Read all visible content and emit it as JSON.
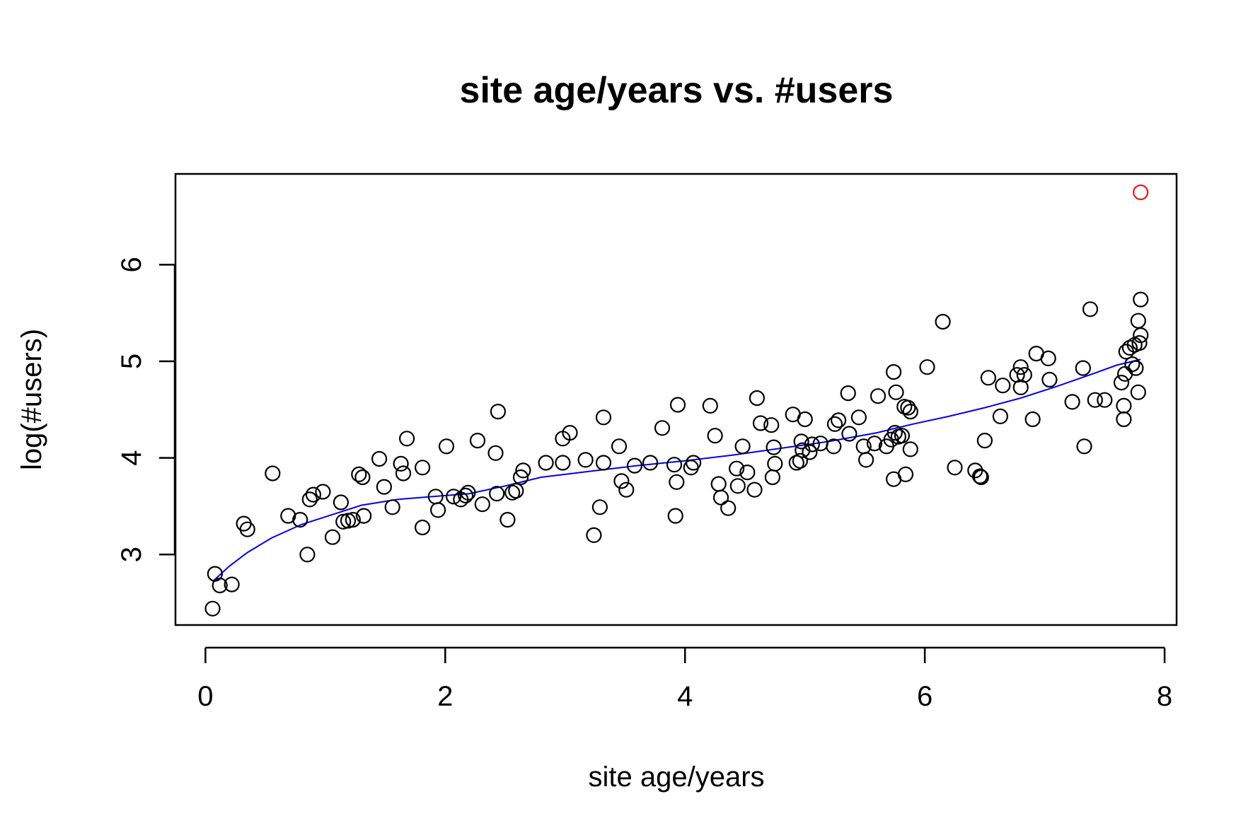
{
  "chart_data": {
    "type": "scatter",
    "title": "site age/years vs. #users",
    "xlabel": "site age/years",
    "ylabel": "log(#users)",
    "xlim": [
      -0.25,
      8.1
    ],
    "ylim": [
      2.27,
      6.94
    ],
    "x_ticks": [
      0,
      2,
      4,
      6,
      8
    ],
    "y_ticks": [
      3,
      4,
      5,
      6
    ],
    "x_tick_labels": [
      "0",
      "2",
      "4",
      "6",
      "8"
    ],
    "y_tick_labels": [
      "3",
      "4",
      "5",
      "6"
    ],
    "grid": false,
    "legend": "none",
    "colors": {
      "points": "#000000",
      "highlight": "#e41a1c",
      "smooth_line": "#0000ee",
      "axes": "#000000"
    },
    "series": [
      {
        "marker": "open-circle",
        "points": [
          [
            0.06,
            2.44
          ],
          [
            0.08,
            2.8
          ],
          [
            0.12,
            2.68
          ],
          [
            0.22,
            2.69
          ],
          [
            0.32,
            3.32
          ],
          [
            0.35,
            3.26
          ],
          [
            0.56,
            3.84
          ],
          [
            0.69,
            3.4
          ],
          [
            0.79,
            3.36
          ],
          [
            0.85,
            3.0
          ],
          [
            0.87,
            3.57
          ],
          [
            0.9,
            3.62
          ],
          [
            0.98,
            3.65
          ],
          [
            1.06,
            3.18
          ],
          [
            1.13,
            3.54
          ],
          [
            1.15,
            3.34
          ],
          [
            1.19,
            3.35
          ],
          [
            1.23,
            3.36
          ],
          [
            1.28,
            3.83
          ],
          [
            1.31,
            3.8
          ],
          [
            1.32,
            3.4
          ],
          [
            1.45,
            3.99
          ],
          [
            1.49,
            3.7
          ],
          [
            1.56,
            3.49
          ],
          [
            1.63,
            3.94
          ],
          [
            1.65,
            3.84
          ],
          [
            1.68,
            4.2
          ],
          [
            1.81,
            3.9
          ],
          [
            1.81,
            3.28
          ],
          [
            1.92,
            3.6
          ],
          [
            1.94,
            3.46
          ],
          [
            2.01,
            4.12
          ],
          [
            2.07,
            3.6
          ],
          [
            2.13,
            3.57
          ],
          [
            2.17,
            3.61
          ],
          [
            2.19,
            3.64
          ],
          [
            2.27,
            4.18
          ],
          [
            2.31,
            3.52
          ],
          [
            2.42,
            4.05
          ],
          [
            2.43,
            3.63
          ],
          [
            2.44,
            4.48
          ],
          [
            2.52,
            3.36
          ],
          [
            2.56,
            3.64
          ],
          [
            2.59,
            3.66
          ],
          [
            2.63,
            3.8
          ],
          [
            2.65,
            3.87
          ],
          [
            2.84,
            3.95
          ],
          [
            2.98,
            3.95
          ],
          [
            2.98,
            4.2
          ],
          [
            3.04,
            4.26
          ],
          [
            3.17,
            3.98
          ],
          [
            3.24,
            3.2
          ],
          [
            3.29,
            3.49
          ],
          [
            3.32,
            3.95
          ],
          [
            3.32,
            4.42
          ],
          [
            3.45,
            4.12
          ],
          [
            3.47,
            3.76
          ],
          [
            3.51,
            3.67
          ],
          [
            3.58,
            3.92
          ],
          [
            3.71,
            3.95
          ],
          [
            3.81,
            4.31
          ],
          [
            3.91,
            3.93
          ],
          [
            3.92,
            3.4
          ],
          [
            3.93,
            3.75
          ],
          [
            3.94,
            4.55
          ],
          [
            4.05,
            3.9
          ],
          [
            4.07,
            3.95
          ],
          [
            4.21,
            4.54
          ],
          [
            4.25,
            4.23
          ],
          [
            4.28,
            3.73
          ],
          [
            4.3,
            3.59
          ],
          [
            4.36,
            3.48
          ],
          [
            4.43,
            3.89
          ],
          [
            4.44,
            3.71
          ],
          [
            4.48,
            4.12
          ],
          [
            4.52,
            3.85
          ],
          [
            4.58,
            3.67
          ],
          [
            4.6,
            4.62
          ],
          [
            4.63,
            4.36
          ],
          [
            4.72,
            4.34
          ],
          [
            4.73,
            3.8
          ],
          [
            4.74,
            4.11
          ],
          [
            4.75,
            3.94
          ],
          [
            4.9,
            4.45
          ],
          [
            4.93,
            3.95
          ],
          [
            4.96,
            3.97
          ],
          [
            4.97,
            4.17
          ],
          [
            4.98,
            4.08
          ],
          [
            5.0,
            4.4
          ],
          [
            5.04,
            4.06
          ],
          [
            5.06,
            4.14
          ],
          [
            5.13,
            4.15
          ],
          [
            5.24,
            4.12
          ],
          [
            5.25,
            4.35
          ],
          [
            5.28,
            4.39
          ],
          [
            5.36,
            4.67
          ],
          [
            5.37,
            4.25
          ],
          [
            5.45,
            4.42
          ],
          [
            5.49,
            4.12
          ],
          [
            5.51,
            3.98
          ],
          [
            5.58,
            4.15
          ],
          [
            5.61,
            4.64
          ],
          [
            5.68,
            4.12
          ],
          [
            5.72,
            4.19
          ],
          [
            5.74,
            3.78
          ],
          [
            5.74,
            4.89
          ],
          [
            5.75,
            4.26
          ],
          [
            5.76,
            4.68
          ],
          [
            5.78,
            4.22
          ],
          [
            5.81,
            4.23
          ],
          [
            5.83,
            4.53
          ],
          [
            5.84,
            3.83
          ],
          [
            5.86,
            4.52
          ],
          [
            5.88,
            4.48
          ],
          [
            5.88,
            4.09
          ],
          [
            6.02,
            4.94
          ],
          [
            6.15,
            5.41
          ],
          [
            6.25,
            3.9
          ],
          [
            6.42,
            3.87
          ],
          [
            6.46,
            3.81
          ],
          [
            6.47,
            3.8
          ],
          [
            6.5,
            4.18
          ],
          [
            6.53,
            4.83
          ],
          [
            6.63,
            4.43
          ],
          [
            6.65,
            4.75
          ],
          [
            6.77,
            4.86
          ],
          [
            6.8,
            4.73
          ],
          [
            6.8,
            4.94
          ],
          [
            6.83,
            4.86
          ],
          [
            6.9,
            4.4
          ],
          [
            6.93,
            5.08
          ],
          [
            7.03,
            5.03
          ],
          [
            7.04,
            4.81
          ],
          [
            7.23,
            4.58
          ],
          [
            7.32,
            4.93
          ],
          [
            7.33,
            4.12
          ],
          [
            7.38,
            5.54
          ],
          [
            7.42,
            4.6
          ],
          [
            7.5,
            4.6
          ],
          [
            7.64,
            4.78
          ],
          [
            7.66,
            4.4
          ],
          [
            7.66,
            4.54
          ],
          [
            7.67,
            4.87
          ],
          [
            7.68,
            5.1
          ],
          [
            7.71,
            5.14
          ],
          [
            7.73,
            4.97
          ],
          [
            7.75,
            5.17
          ],
          [
            7.76,
            4.93
          ],
          [
            7.78,
            5.42
          ],
          [
            7.78,
            4.68
          ],
          [
            7.79,
            5.19
          ],
          [
            7.8,
            5.27
          ],
          [
            7.8,
            5.64
          ]
        ]
      },
      {
        "marker": "open-circle",
        "color": "highlight",
        "points": [
          [
            7.8,
            6.75
          ]
        ]
      }
    ],
    "smooth_line": [
      [
        0.06,
        2.72
      ],
      [
        0.2,
        2.88
      ],
      [
        0.35,
        3.02
      ],
      [
        0.55,
        3.17
      ],
      [
        0.8,
        3.31
      ],
      [
        1.05,
        3.41
      ],
      [
        1.3,
        3.51
      ],
      [
        1.6,
        3.57
      ],
      [
        1.9,
        3.6
      ],
      [
        2.2,
        3.63
      ],
      [
        2.5,
        3.71
      ],
      [
        2.8,
        3.8
      ],
      [
        3.2,
        3.86
      ],
      [
        3.6,
        3.92
      ],
      [
        4.0,
        3.97
      ],
      [
        4.4,
        4.03
      ],
      [
        4.8,
        4.1
      ],
      [
        5.2,
        4.17
      ],
      [
        5.6,
        4.26
      ],
      [
        5.9,
        4.35
      ],
      [
        6.2,
        4.43
      ],
      [
        6.5,
        4.52
      ],
      [
        6.8,
        4.62
      ],
      [
        7.1,
        4.74
      ],
      [
        7.4,
        4.87
      ],
      [
        7.6,
        4.96
      ],
      [
        7.8,
        5.02
      ]
    ]
  }
}
